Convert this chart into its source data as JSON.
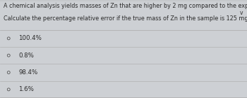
{
  "question_line1": "A chemical analysis yields masses of Zn that are higher by 2 mg compared to the expected value.",
  "question_line2": "Calculate the percentage relative error if the true mass of Zn in the sample is 125 mg.",
  "options": [
    "100.4%",
    "0.8%",
    "98.4%",
    "1.6%"
  ],
  "bg_color": "#cdd0d4",
  "text_color": "#2a2a2a",
  "divider_color": "#aaaaaa",
  "question_fontsize": 5.8,
  "option_fontsize": 6.2,
  "dropdown_arrow": "v"
}
